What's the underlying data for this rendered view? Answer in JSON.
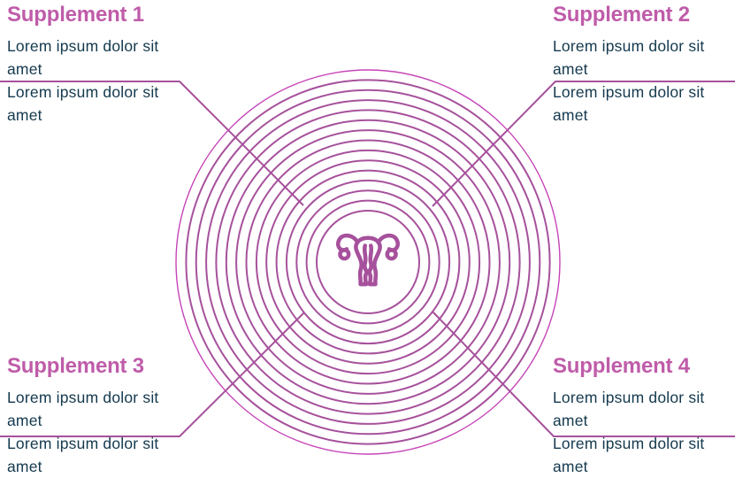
{
  "panels": [
    {
      "title": "Supplement 1",
      "lines": [
        "Lorem ipsum dolor sit amet",
        "Lorem ipsum dolor sit amet"
      ]
    },
    {
      "title": "Supplement 2",
      "lines": [
        "Lorem ipsum dolor sit amet",
        "Lorem ipsum dolor sit amet"
      ]
    },
    {
      "title": "Supplement 3",
      "lines": [
        "Lorem ipsum dolor sit amet",
        "Lorem ipsum dolor sit amet"
      ]
    },
    {
      "title": "Supplement 4",
      "lines": [
        "Lorem ipsum dolor sit amet",
        "Lorem ipsum dolor sit amet"
      ]
    }
  ],
  "icon": {
    "name": "uterus-icon"
  },
  "rings": {
    "count": 15,
    "inner_radius": 58,
    "outer_radius": 217
  },
  "colors": {
    "accent": "#a6519c",
    "outer_ring": "#c644b8",
    "title": "#bf5ca9",
    "body_text": "#14394e",
    "background": "#ffffff"
  }
}
